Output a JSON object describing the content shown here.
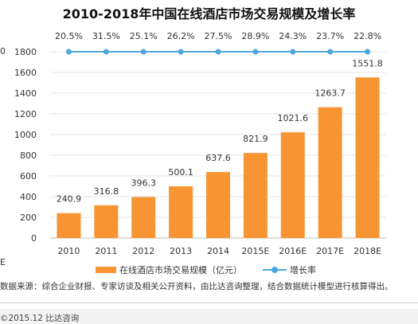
{
  "page": {
    "title": "2010-2018年中国在线酒店市场交易规模及增长率",
    "source_text": "数据来源：综合企业财报、专家访谈及相关公开资料，由比达咨询整理，结合数据统计模型进行核算得出。",
    "copyright": "©2015.12  比达咨询",
    "left_edge_fragment_top": "0",
    "left_edge_fragment_bottom": "E"
  },
  "colors": {
    "bar": "#F79533",
    "line": "#4BA8E0",
    "grid": "#e6e6e6",
    "axis": "#bfbfbf"
  },
  "chart_data": {
    "type": "bar",
    "title": "2010-2018年中国在线酒店市场交易规模及增长率",
    "categories": [
      "2010",
      "2011",
      "2012",
      "2013",
      "2014",
      "2015E",
      "2016E",
      "2017E",
      "2018E"
    ],
    "series": [
      {
        "name": "在线酒店市场交易规模（亿元）",
        "type": "bar",
        "values": [
          240.9,
          316.8,
          396.3,
          500.1,
          637.6,
          821.9,
          1021.6,
          1263.7,
          1551.8
        ],
        "labels": [
          "240.9",
          "316.8",
          "396.3",
          "500.1",
          "637.6",
          "821.9",
          "1021.6",
          "1263.7",
          "1551.8"
        ]
      },
      {
        "name": "增长率",
        "type": "line",
        "values": [
          20.5,
          31.5,
          25.1,
          26.2,
          27.5,
          28.9,
          24.3,
          23.7,
          22.8
        ],
        "labels": [
          "20.5%",
          "31.5%",
          "25.1%",
          "26.2%",
          "27.5%",
          "28.9%",
          "24.3%",
          "23.7%",
          "22.8%"
        ]
      }
    ],
    "yticks": [
      "0",
      "200",
      "400",
      "600",
      "800",
      "1000",
      "1200",
      "1400",
      "1600",
      "1800"
    ],
    "ylim": [
      0,
      1800
    ],
    "grid": true,
    "legend_position": "bottom"
  }
}
